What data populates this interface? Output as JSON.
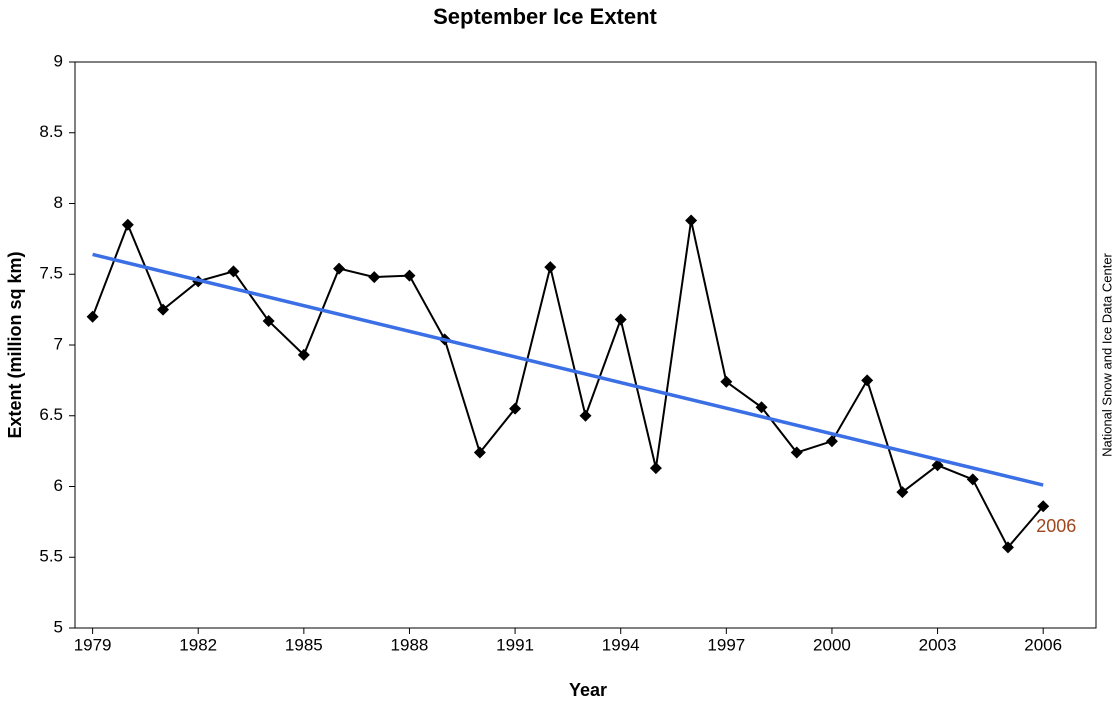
{
  "chart_data": {
    "type": "line",
    "title": "September Ice Extent",
    "x_label": "Year",
    "y_label": "Extent (million sq km)",
    "x": [
      1979,
      1980,
      1981,
      1982,
      1983,
      1984,
      1985,
      1986,
      1987,
      1988,
      1989,
      1990,
      1991,
      1992,
      1993,
      1994,
      1995,
      1996,
      1997,
      1998,
      1999,
      2000,
      2001,
      2002,
      2003,
      2004,
      2005,
      2006
    ],
    "series": [
      {
        "color": "#000000",
        "marker": "diamond",
        "values": [
          7.2,
          7.85,
          7.25,
          7.45,
          7.52,
          7.17,
          6.93,
          7.54,
          7.48,
          7.49,
          7.04,
          6.24,
          6.55,
          7.55,
          6.5,
          7.18,
          6.13,
          7.88,
          6.74,
          6.56,
          6.24,
          6.32,
          6.75,
          5.96,
          6.15,
          6.05,
          5.57,
          5.86
        ]
      },
      {
        "color": "#3b6fe6",
        "x": [
          1979,
          2006
        ],
        "values": [
          7.64,
          6.01
        ]
      }
    ],
    "xlim": [
      1978.5,
      2007.5
    ],
    "xticks": [
      1979,
      1982,
      1985,
      1988,
      1991,
      1994,
      1997,
      2000,
      2003,
      2006
    ],
    "ylim": [
      5,
      9
    ],
    "yticks": [
      5,
      5.5,
      6,
      6.5,
      7,
      7.5,
      8,
      8.5,
      9
    ],
    "grid": false,
    "annotations": [
      {
        "text": "2006",
        "x": 2006,
        "y": 5.86,
        "color": "#a0461e"
      }
    ],
    "source": "National Snow and Ice Data Center"
  }
}
